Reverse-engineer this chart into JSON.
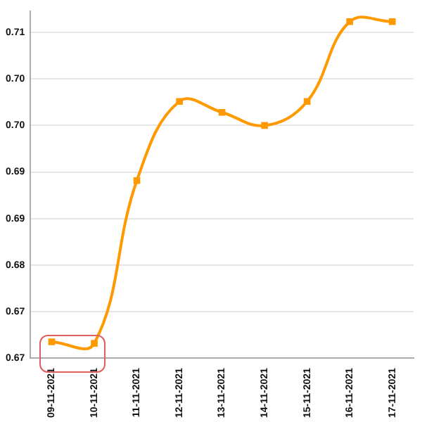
{
  "chart_data": {
    "type": "line",
    "categories": [
      "09-11-2021",
      "10-11-2021",
      "11-11-2021",
      "12-11-2021",
      "13-11-2021",
      "14-11-2021",
      "15-11-2021",
      "16-11-2021",
      "17-11-2021"
    ],
    "series": [
      {
        "color": "#ff9900",
        "values": [
          0.6691,
          0.6689,
          0.6899,
          0.7001,
          0.6987,
          0.697,
          0.7001,
          0.7104,
          0.7104
        ]
      }
    ],
    "ylim": [
      0.667,
      0.7117
    ],
    "yticks": [
      {
        "value": 0.667,
        "label": "0.67"
      },
      {
        "value": 0.673,
        "label": "0.67"
      },
      {
        "value": 0.679,
        "label": "0.68"
      },
      {
        "value": 0.685,
        "label": "0.69"
      },
      {
        "value": 0.691,
        "label": "0.69"
      },
      {
        "value": 0.697,
        "label": "0.70"
      },
      {
        "value": 0.703,
        "label": "0.70"
      },
      {
        "value": 0.709,
        "label": "0.71"
      }
    ],
    "grid": "y",
    "marker": "square",
    "line_style": "solid",
    "legend": false
  }
}
